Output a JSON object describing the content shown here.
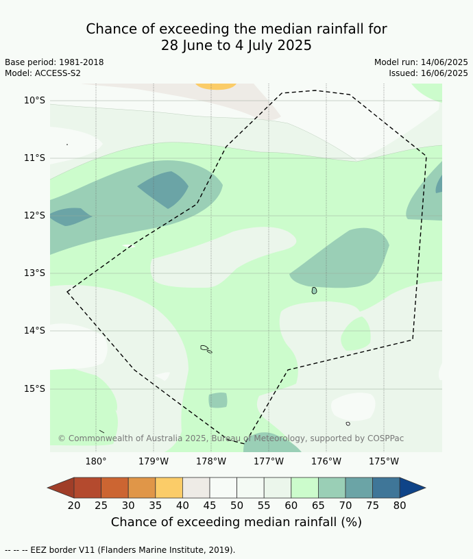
{
  "title_line1": "Chance of exceeding the median rainfall for",
  "title_line2": "28 June to 4 July 2025",
  "base_period": "Base period: 1981-2018",
  "model": "Model: ACCESS-S2",
  "model_run": "Model run: 14/06/2025",
  "issued": "Issued: 16/06/2025",
  "lat_labels": [
    "10°S",
    "11°S",
    "12°S",
    "13°S",
    "14°S",
    "15°S"
  ],
  "lon_labels": [
    "180°",
    "179°W",
    "178°W",
    "177°W",
    "176°W",
    "175°W"
  ],
  "copyright": "© Commonwealth of Australia 2025, Bureau of Meteorology, supported by COSPPac",
  "colorbar": {
    "ticks": [
      "20",
      "25",
      "30",
      "35",
      "40",
      "45",
      "50",
      "55",
      "60",
      "65",
      "70",
      "75",
      "80"
    ],
    "colors": [
      "#a03e28",
      "#b44a2e",
      "#cc6532",
      "#e09648",
      "#fbcc68",
      "#eeebe6",
      "#f7fbf7",
      "#f4faf4",
      "#ebf6eb",
      "#ccfccc",
      "#9acfb6",
      "#6ba4a6",
      "#3f7698",
      "#0f4488"
    ],
    "label": "Chance of exceeding median rainfall (%)"
  },
  "footer": "--  --  -- EEZ border V11 (Flanders Marine Institute, 2019)."
}
